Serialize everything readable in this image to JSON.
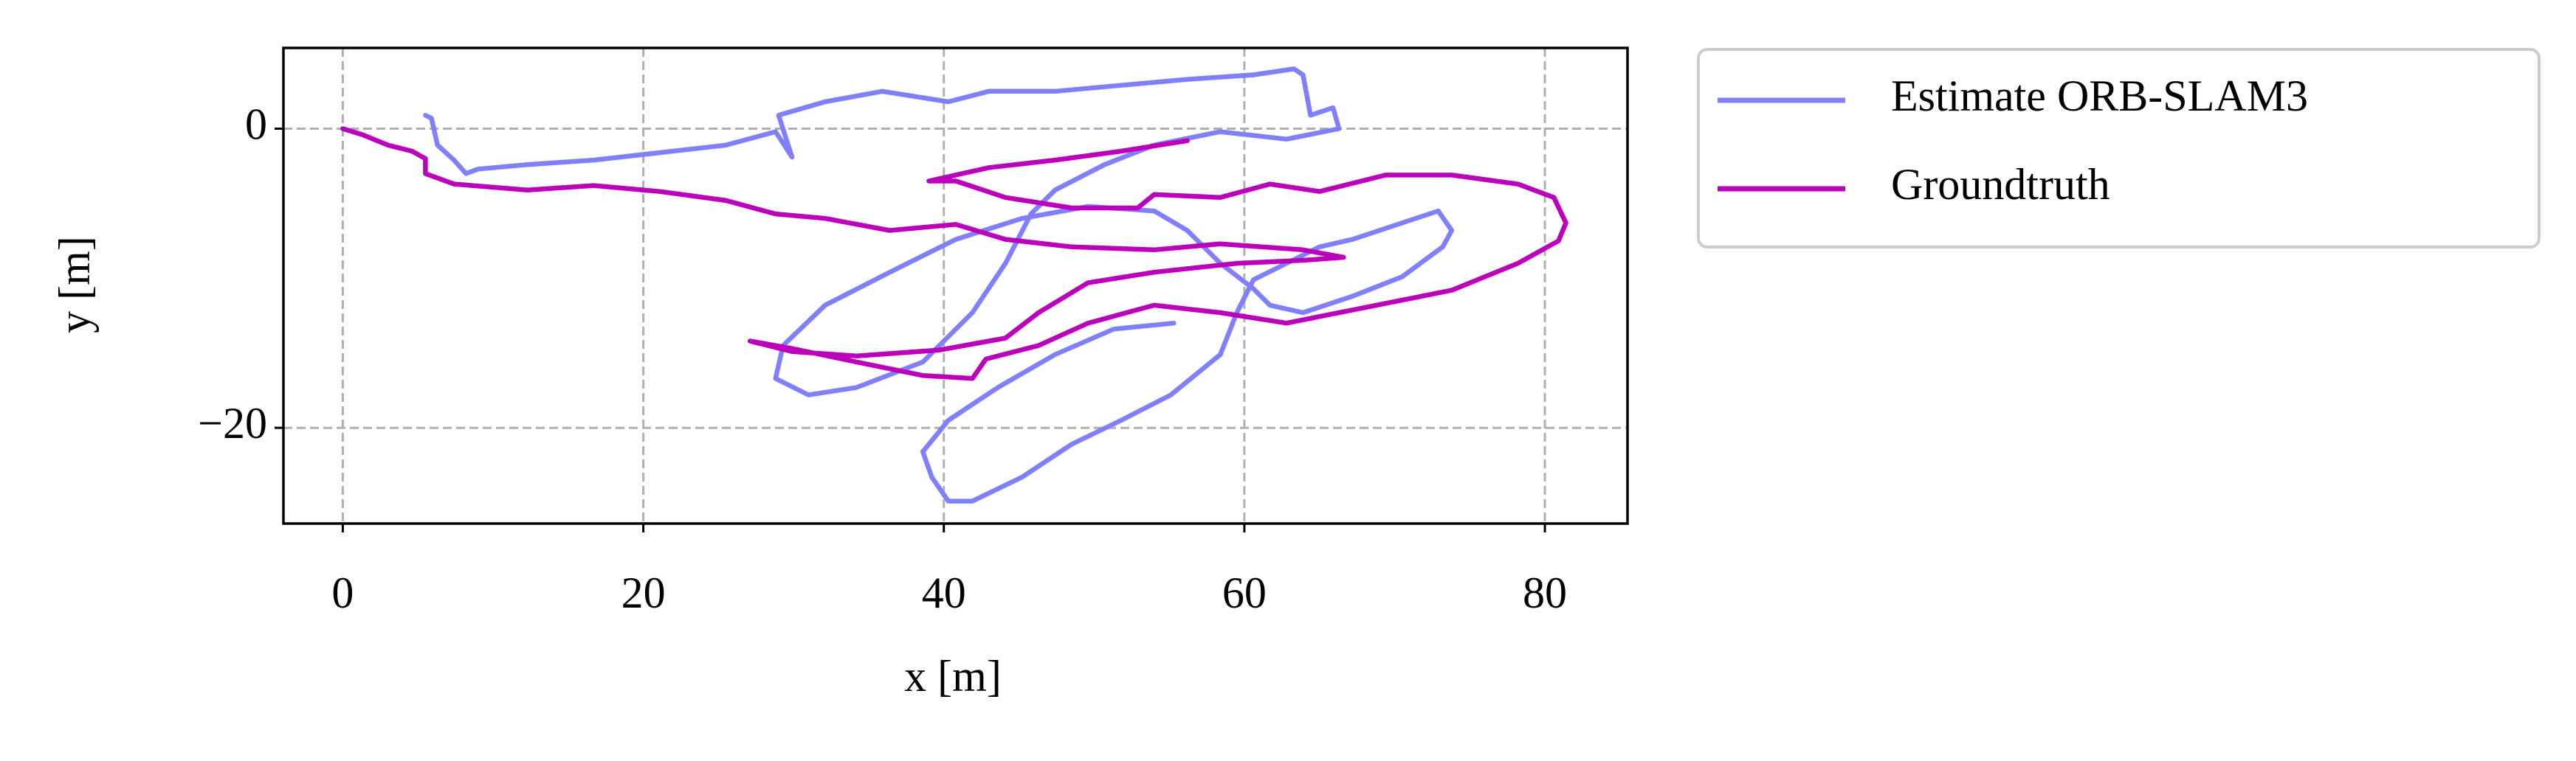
{
  "chart_data": {
    "type": "line",
    "xlabel": "x [m]",
    "ylabel": "y [m]",
    "xlim": [
      -3.95,
      85.5
    ],
    "ylim": [
      -26.4,
      5.4
    ],
    "xticks": [
      0,
      20,
      40,
      60,
      80
    ],
    "yticks": [
      {
        "value": -20,
        "label": "−20"
      },
      0
    ],
    "grid": true,
    "series": [
      {
        "name": "Estimate ORB-SLAM3",
        "color": "#8080ff",
        "x": [
          5.5,
          5.9,
          6.3,
          7.4,
          8.2,
          9.0,
          12.3,
          16.7,
          21.1,
          25.5,
          28.8,
          29.9,
          29.0,
          32.1,
          35.9,
          40.3,
          43.0,
          47.4,
          51.8,
          56.2,
          60.6,
          63.3,
          63.9,
          64.4,
          65.9,
          66.3,
          62.8,
          58.4,
          54.0,
          50.7,
          47.4,
          45.8,
          44.1,
          41.9,
          38.6,
          34.2,
          31.0,
          28.8,
          29.3,
          32.1,
          36.4,
          40.8,
          45.2,
          49.6,
          54.0,
          56.2,
          58.4,
          60.6,
          61.7,
          63.9,
          67.2,
          70.5,
          73.2,
          73.8,
          72.9,
          70.5,
          67.2,
          65.0,
          62.8,
          60.6,
          59.5,
          58.4,
          55.1,
          51.8,
          48.5,
          45.2,
          41.9,
          40.3,
          39.2,
          38.6,
          40.3,
          43.6,
          47.4,
          51.3,
          55.3
        ],
        "values": [
          0.9,
          0.7,
          -1.1,
          -2.1,
          -3.0,
          -2.7,
          -2.4,
          -2.1,
          -1.6,
          -1.1,
          -0.2,
          -1.9,
          0.9,
          1.8,
          2.5,
          1.8,
          2.5,
          2.5,
          2.9,
          3.3,
          3.6,
          4.0,
          3.6,
          0.9,
          1.4,
          0.0,
          -0.7,
          -0.2,
          -1.1,
          -2.4,
          -4.1,
          -5.7,
          -9.0,
          -12.3,
          -15.6,
          -17.3,
          -17.8,
          -16.7,
          -14.5,
          -11.8,
          -9.6,
          -7.4,
          -6.0,
          -5.2,
          -5.5,
          -6.8,
          -9.0,
          -10.7,
          -11.8,
          -12.3,
          -11.2,
          -9.9,
          -7.9,
          -6.8,
          -5.5,
          -6.3,
          -7.4,
          -7.9,
          -9.0,
          -10.1,
          -12.3,
          -15.1,
          -17.8,
          -19.5,
          -21.1,
          -23.3,
          -24.9,
          -24.9,
          -23.3,
          -21.6,
          -19.5,
          -17.3,
          -15.1,
          -13.4,
          -13.0
        ]
      },
      {
        "name": "Groundtruth",
        "color": "#bb00bb",
        "x": [
          0.0,
          1.3,
          3.0,
          4.6,
          5.5,
          5.5,
          7.4,
          12.3,
          16.7,
          21.1,
          25.5,
          28.8,
          32.1,
          36.4,
          40.8,
          44.1,
          48.5,
          54.0,
          58.4,
          63.9,
          66.6,
          63.9,
          59.5,
          54.0,
          49.6,
          46.3,
          44.1,
          39.7,
          34.2,
          29.9,
          27.1,
          29.9,
          34.2,
          38.6,
          41.9,
          42.8,
          46.3,
          49.6,
          54.0,
          58.4,
          62.8,
          68.3,
          73.8,
          78.2,
          80.9,
          81.4,
          80.6,
          78.2,
          73.8,
          69.4,
          65.0,
          61.7,
          58.4,
          54.0,
          52.9,
          48.5,
          44.1,
          40.8,
          39.0,
          43.0,
          47.4,
          51.8,
          56.2
        ],
        "values": [
          0.0,
          -0.4,
          -1.1,
          -1.5,
          -2.0,
          -3.0,
          -3.7,
          -4.1,
          -3.8,
          -4.2,
          -4.8,
          -5.7,
          -6.0,
          -6.8,
          -6.4,
          -7.4,
          -7.9,
          -8.1,
          -7.7,
          -8.1,
          -8.6,
          -8.8,
          -9.0,
          -9.6,
          -10.3,
          -12.3,
          -14.0,
          -14.8,
          -15.2,
          -14.9,
          -14.2,
          -14.7,
          -15.6,
          -16.5,
          -16.7,
          -15.4,
          -14.5,
          -13.0,
          -11.8,
          -12.3,
          -13.0,
          -11.9,
          -10.8,
          -9.0,
          -7.5,
          -6.3,
          -4.6,
          -3.7,
          -3.1,
          -3.1,
          -4.2,
          -3.7,
          -4.6,
          -4.4,
          -5.3,
          -5.3,
          -4.6,
          -3.5,
          -3.5,
          -2.6,
          -2.1,
          -1.5,
          -0.8
        ]
      }
    ]
  }
}
